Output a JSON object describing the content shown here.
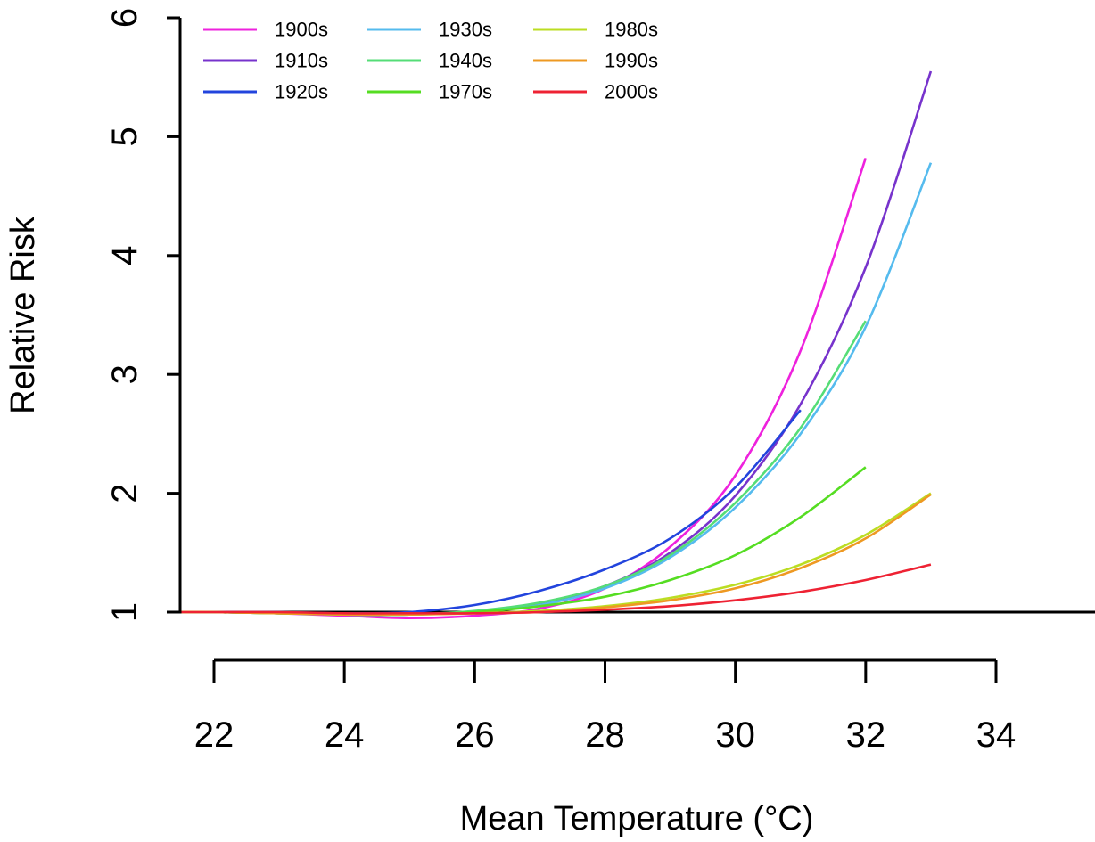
{
  "chart_data": {
    "type": "line",
    "title": "",
    "xlabel": "Mean Temperature (°C)",
    "ylabel": "Relative Risk",
    "xlim": [
      21.2,
      35.8
    ],
    "ylim": [
      1,
      6
    ],
    "xticks": [
      22,
      24,
      26,
      28,
      30,
      32,
      34
    ],
    "yticks": [
      1,
      2,
      3,
      4,
      5,
      6
    ],
    "legend_position": "top-left",
    "series": [
      {
        "name": "1900s",
        "color": "#ee22dd",
        "x": [
          21.5,
          22,
          23,
          24,
          25,
          26,
          27,
          28,
          29,
          30,
          31,
          32
        ],
        "y": [
          1.0,
          1.0,
          0.99,
          0.97,
          0.95,
          0.97,
          1.03,
          1.2,
          1.55,
          2.15,
          3.2,
          4.82
        ]
      },
      {
        "name": "1910s",
        "color": "#7733cc",
        "x": [
          21.5,
          22,
          23,
          24,
          25,
          26,
          27,
          28,
          29,
          30,
          31,
          32,
          33
        ],
        "y": [
          1.0,
          1.0,
          0.99,
          0.98,
          0.98,
          1.0,
          1.07,
          1.22,
          1.5,
          1.98,
          2.75,
          3.9,
          5.55
        ]
      },
      {
        "name": "1920s",
        "color": "#2244dd",
        "x": [
          21.5,
          22,
          23,
          24,
          25,
          26,
          27,
          28,
          29,
          30,
          31
        ],
        "y": [
          1.0,
          1.0,
          1.0,
          0.99,
          1.0,
          1.06,
          1.18,
          1.36,
          1.62,
          2.05,
          2.7
        ]
      },
      {
        "name": "1930s",
        "color": "#55bbee",
        "x": [
          21.5,
          22,
          23,
          24,
          25,
          26,
          27,
          28,
          29,
          30,
          31,
          32,
          33
        ],
        "y": [
          1.0,
          1.0,
          0.99,
          0.98,
          0.98,
          1.0,
          1.06,
          1.2,
          1.46,
          1.88,
          2.5,
          3.4,
          4.78
        ]
      },
      {
        "name": "1940s",
        "color": "#55dd77",
        "x": [
          21.5,
          22,
          23,
          24,
          25,
          26,
          27,
          28,
          29,
          30,
          31,
          32
        ],
        "y": [
          1.0,
          1.0,
          0.99,
          0.98,
          0.98,
          1.01,
          1.08,
          1.22,
          1.48,
          1.92,
          2.55,
          3.45
        ]
      },
      {
        "name": "1970s",
        "color": "#55dd22",
        "x": [
          21.5,
          22,
          23,
          24,
          25,
          26,
          27,
          28,
          29,
          30,
          31,
          32
        ],
        "y": [
          1.0,
          1.0,
          0.99,
          0.98,
          0.98,
          1.0,
          1.05,
          1.13,
          1.27,
          1.48,
          1.8,
          2.22
        ]
      },
      {
        "name": "1980s",
        "color": "#bbdd22",
        "x": [
          21.5,
          22,
          23,
          24,
          25,
          26,
          27,
          28,
          29,
          30,
          31,
          32,
          33
        ],
        "y": [
          1.0,
          1.0,
          0.99,
          0.98,
          0.98,
          0.99,
          1.01,
          1.05,
          1.12,
          1.23,
          1.4,
          1.65,
          2.0
        ]
      },
      {
        "name": "1990s",
        "color": "#ee9922",
        "x": [
          21.5,
          22,
          23,
          24,
          25,
          26,
          27,
          28,
          29,
          30,
          31,
          32,
          33
        ],
        "y": [
          1.0,
          1.0,
          0.99,
          0.98,
          0.98,
          0.99,
          1.0,
          1.04,
          1.1,
          1.2,
          1.37,
          1.62,
          1.99
        ]
      },
      {
        "name": "2000s",
        "color": "#ee2233",
        "x": [
          21.5,
          22,
          23,
          24,
          25,
          26,
          27,
          28,
          29,
          30,
          31,
          32,
          33
        ],
        "y": [
          1.0,
          1.0,
          1.0,
          0.99,
          0.99,
          0.99,
          1.0,
          1.02,
          1.05,
          1.1,
          1.17,
          1.27,
          1.4
        ]
      }
    ]
  }
}
